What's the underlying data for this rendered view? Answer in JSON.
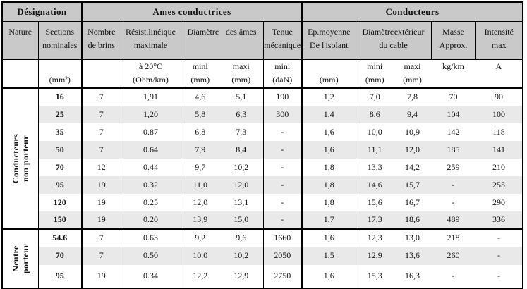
{
  "colors": {
    "page_bg": "#ffffff",
    "header_bg": "#c9c9c9",
    "stripe_bg": "#e9e9e9",
    "border": "#000000"
  },
  "table": {
    "header": {
      "groups": [
        {
          "id": "designation",
          "label": "Désignation",
          "span": 2
        },
        {
          "id": "ames-conductrices",
          "label": "Ames conductrices",
          "span": 5
        },
        {
          "id": "conducteurs",
          "label": "Conducteurs",
          "span": 5
        }
      ],
      "cols": [
        {
          "id": "nature",
          "span": 1,
          "lines": [
            [
              "Nature"
            ]
          ]
        },
        {
          "id": "sections",
          "span": 1,
          "lines": [
            [
              "Sections"
            ],
            [
              "nominales"
            ]
          ]
        },
        {
          "id": "nombre-brins",
          "span": 1,
          "lines": [
            [
              "Nombre"
            ],
            [
              "de brins"
            ]
          ]
        },
        {
          "id": "resistance",
          "span": 1,
          "lines": [
            [
              "Résist.linéique"
            ],
            [
              "maximale"
            ]
          ]
        },
        {
          "id": "diametre-ames",
          "span": 2,
          "lines": [
            [
              "Diamètre",
              "des âmes"
            ]
          ]
        },
        {
          "id": "tenue",
          "span": 1,
          "lines": [
            [
              "Tenue"
            ],
            [
              "mécanique"
            ]
          ]
        },
        {
          "id": "ep-isolant",
          "span": 1,
          "lines": [
            [
              "Ep.moyenne"
            ],
            [
              "De l'isolant"
            ]
          ]
        },
        {
          "id": "diametre-cable",
          "span": 2,
          "lines": [
            [
              "Diamètre",
              "extérieur"
            ],
            [
              "du cable"
            ]
          ]
        },
        {
          "id": "masse",
          "span": 1,
          "lines": [
            [
              "Masse"
            ],
            [
              "Approx."
            ]
          ]
        },
        {
          "id": "intensite",
          "span": 1,
          "lines": [
            [
              "Intensité"
            ],
            [
              "max"
            ]
          ]
        }
      ],
      "units": [
        {
          "top": "",
          "bottom": ""
        },
        {
          "top": "",
          "bottom": "(mm²)"
        },
        {
          "top": "",
          "bottom": ""
        },
        {
          "top": "à 20°C",
          "bottom": "(Ohm/km)"
        },
        {
          "top": "mini",
          "bottom": "(mm)"
        },
        {
          "top": "maxi",
          "bottom": "(mm)"
        },
        {
          "top": "mini",
          "bottom": "(daN)"
        },
        {
          "top": "",
          "bottom": "(mm)"
        },
        {
          "top": "mini",
          "bottom": "(mm)"
        },
        {
          "top": "maxi",
          "bottom": "(mm)"
        },
        {
          "top": "kg/km",
          "bottom": ""
        },
        {
          "top": "A",
          "bottom": ""
        }
      ]
    },
    "body": {
      "groups": [
        {
          "id": "conducteurs-non-porteur",
          "label": "Conducteurs non porteur",
          "rows": [
            [
              "16",
              "7",
              "1,91",
              "4,6",
              "5,1",
              "190",
              "1,2",
              "7,0",
              "7,8",
              "70",
              "90"
            ],
            [
              "25",
              "7",
              "1,20",
              "5,8",
              "6,3",
              "300",
              "1,4",
              "8,6",
              "9,4",
              "104",
              "100"
            ],
            [
              "35",
              "7",
              "0.87",
              "6,8",
              "7,3",
              "-",
              "1,6",
              "10,0",
              "10,9",
              "142",
              "118"
            ],
            [
              "50",
              "7",
              "0.64",
              "7,9",
              "8,4",
              "-",
              "1,6",
              "11,1",
              "12,0",
              "185",
              "141"
            ],
            [
              "70",
              "12",
              "0.44",
              "9,7",
              "10,2",
              "-",
              "1,8",
              "13,3",
              "14,2",
              "259",
              "210"
            ],
            [
              "95",
              "19",
              "0.32",
              "11,0",
              "12,0",
              "-",
              "1,8",
              "14,6",
              "15,7",
              "-",
              "255"
            ],
            [
              "120",
              "19",
              "0.25",
              "12,0",
              "13,1",
              "-",
              "1,8",
              "15,6",
              "16,7",
              "-",
              "290"
            ],
            [
              "150",
              "19",
              "0.20",
              "13,9",
              "15,0",
              "-",
              "1,7",
              "17,3",
              "18,6",
              "489",
              "336"
            ]
          ]
        },
        {
          "id": "neutre-porteur",
          "label": "Neutre\nporteur",
          "rows": [
            [
              "54.6",
              "7",
              "0.63",
              "9,2",
              "9,6",
              "1660",
              "1,6",
              "12,3",
              "13,0",
              "218",
              "-"
            ],
            [
              "70",
              "7",
              "0.50",
              "10.0",
              "10,2",
              "2050",
              "1,5",
              "12,9",
              "13,6",
              "260",
              "-"
            ],
            [
              "95",
              "19",
              "0.34",
              "12,2",
              "12,9",
              "2750",
              "1,6",
              "15,3",
              "16,3",
              "-",
              "-"
            ]
          ]
        }
      ]
    }
  }
}
